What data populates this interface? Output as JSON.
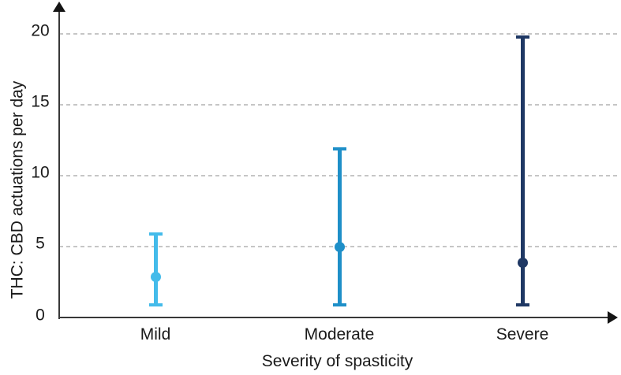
{
  "chart_data": {
    "type": "scatter",
    "subtype": "point-with-min-max-range-bars",
    "title": "",
    "xlabel": "Severity of spasticity",
    "ylabel": "THC: CBD actuations per day",
    "categories": [
      "Mild",
      "Moderate",
      "Severe"
    ],
    "series": [
      {
        "category": "Mild",
        "point": 2.9,
        "low": 0.9,
        "high": 5.9,
        "color": "#44BBEA"
      },
      {
        "category": "Moderate",
        "point": 5.0,
        "low": 0.9,
        "high": 11.9,
        "color": "#1E8FC8"
      },
      {
        "category": "Severe",
        "point": 3.9,
        "low": 0.9,
        "high": 19.8,
        "color": "#1F3864"
      }
    ],
    "yticks": [
      0,
      5,
      10,
      15,
      20
    ],
    "ylim": [
      0,
      22
    ],
    "grid": {
      "show": true,
      "orientation": "horizontal",
      "style": "dashed",
      "color": "#C6C6C6",
      "at": [
        5,
        10,
        15,
        20
      ]
    },
    "legend_position": "none",
    "axis_color": "#383838",
    "text_color": "#1A1A1A",
    "axis_arrows": {
      "x_end": true,
      "y_end": true
    }
  }
}
